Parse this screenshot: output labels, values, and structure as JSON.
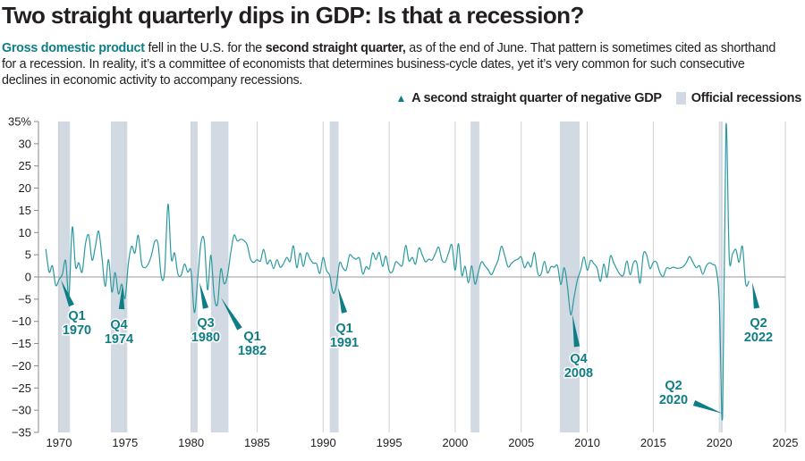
{
  "title": "Two straight quarterly dips in GDP: Is that a recession?",
  "dek": {
    "lead": "Gross domestic product",
    "part1": " fell in the U.S. for the ",
    "bold": "second straight quarter,",
    "part2": " as of the end of June. That pattern is sometimes cited as shorthand for a recession. In reality, it’s a committee of economists that determines business-cycle dates, yet it’s very common for such consecutive declines in economic activity to accompany recessions."
  },
  "legend": {
    "marker_label": "A second straight quarter of negative GDP",
    "shade_label": "Official recessions"
  },
  "colors": {
    "line": "#2a9aa0",
    "accent": "#0f7d86",
    "recession": "#d1d9e3",
    "grid": "#d0d0d0",
    "zero": "#9a9a9a"
  },
  "chart_data": {
    "type": "line",
    "x_start": "1969 Q1",
    "x_step": "quarter",
    "xlim": [
      1969,
      2025
    ],
    "ylim": [
      -35,
      35
    ],
    "x_ticks": [
      "1970",
      "1975",
      "1980",
      "1985",
      "1990",
      "1995",
      "2000",
      "2005",
      "2010",
      "2015",
      "2020",
      "2025"
    ],
    "y_ticks": [
      "35%",
      "30",
      "25",
      "20",
      "15",
      "10",
      "5",
      "0",
      "−5",
      "−10",
      "−15",
      "−20",
      "−25",
      "−30",
      "−35"
    ],
    "grid": "vertical",
    "legend_position": "top-right",
    "values": [
      6.3,
      1.1,
      2.5,
      -1.9,
      -0.6,
      0.6,
      3.7,
      -4.2,
      11.2,
      2.3,
      3.2,
      1.1,
      7.4,
      9.4,
      3.8,
      6.8,
      10.3,
      4.4,
      -2.1,
      3.9,
      -3.4,
      1.0,
      -3.8,
      -1.6,
      -4.8,
      3.0,
      6.9,
      5.4,
      9.4,
      3.1,
      2.1,
      2.9,
      4.9,
      8.0,
      7.4,
      0.0,
      1.3,
      16.4,
      4.1,
      5.4,
      0.7,
      0.4,
      2.9,
      1.1,
      1.3,
      -8.0,
      -0.5,
      7.7,
      8.1,
      -2.9,
      4.9,
      -4.3,
      -6.1,
      1.8,
      -1.5,
      0.2,
      5.4,
      9.4,
      8.1,
      8.5,
      8.2,
      7.2,
      4.0,
      3.3,
      3.9,
      3.6,
      6.2,
      3.0,
      3.8,
      1.9,
      3.9,
      2.2,
      3.0,
      4.4,
      3.5,
      7.0,
      2.1,
      5.4,
      2.4,
      5.4,
      4.1,
      3.1,
      3.0,
      0.8,
      4.4,
      1.5,
      0.3,
      -3.6,
      -1.9,
      3.2,
      2.0,
      1.6,
      4.9,
      4.4,
      4.0,
      4.2,
      0.7,
      2.3,
      1.9,
      5.4,
      3.9,
      5.5,
      2.4,
      4.7,
      1.4,
      1.2,
      3.4,
      2.9,
      2.7,
      7.1,
      3.6,
      4.4,
      2.9,
      6.5,
      5.0,
      3.4,
      4.0,
      3.8,
      5.3,
      6.7,
      3.8,
      3.4,
      5.4,
      7.2,
      1.5,
      7.5,
      0.4,
      2.4,
      -1.3,
      2.5,
      -1.6,
      1.1,
      3.4,
      2.5,
      1.6,
      0.5,
      2.1,
      3.8,
      6.9,
      4.8,
      2.3,
      3.0,
      3.7,
      4.0,
      4.5,
      2.1,
      3.4,
      2.3,
      5.5,
      0.9,
      0.6,
      3.5,
      0.9,
      2.3,
      2.2,
      2.5,
      -1.7,
      2.1,
      -2.1,
      -8.5,
      -4.6,
      -0.7,
      1.5,
      4.5,
      1.5,
      3.7,
      3.0,
      2.0,
      -1.0,
      2.9,
      -0.1,
      4.7,
      3.2,
      1.7,
      0.5,
      0.5,
      3.6,
      0.5,
      3.2,
      3.2,
      -1.4,
      5.2,
      4.9,
      1.9,
      3.3,
      3.3,
      1.0,
      0.1,
      2.0,
      1.9,
      2.2,
      2.0,
      2.0,
      2.3,
      3.2,
      4.6,
      3.3,
      2.1,
      2.5,
      0.6,
      2.4,
      3.2,
      2.8,
      1.9,
      -5.5,
      -31.2,
      33.8,
      4.5,
      5.2,
      6.2,
      3.3,
      6.9,
      -1.6,
      -0.9
    ],
    "recessions": [
      [
        1969.92,
        1970.83
      ],
      [
        1973.92,
        1975.17
      ],
      [
        1980.0,
        1980.5
      ],
      [
        1981.5,
        1982.83
      ],
      [
        1990.5,
        1991.17
      ],
      [
        2001.17,
        2001.83
      ],
      [
        2007.92,
        2009.42
      ],
      [
        2020.08,
        2020.25
      ]
    ],
    "annotations": [
      {
        "quarter": "Q1",
        "year": "1970"
      },
      {
        "quarter": "Q4",
        "year": "1974"
      },
      {
        "quarter": "Q3",
        "year": "1980"
      },
      {
        "quarter": "Q1",
        "year": "1982"
      },
      {
        "quarter": "Q1",
        "year": "1991"
      },
      {
        "quarter": "Q4",
        "year": "2008"
      },
      {
        "quarter": "Q2",
        "year": "2020"
      },
      {
        "quarter": "Q2",
        "year": "2022"
      }
    ]
  }
}
